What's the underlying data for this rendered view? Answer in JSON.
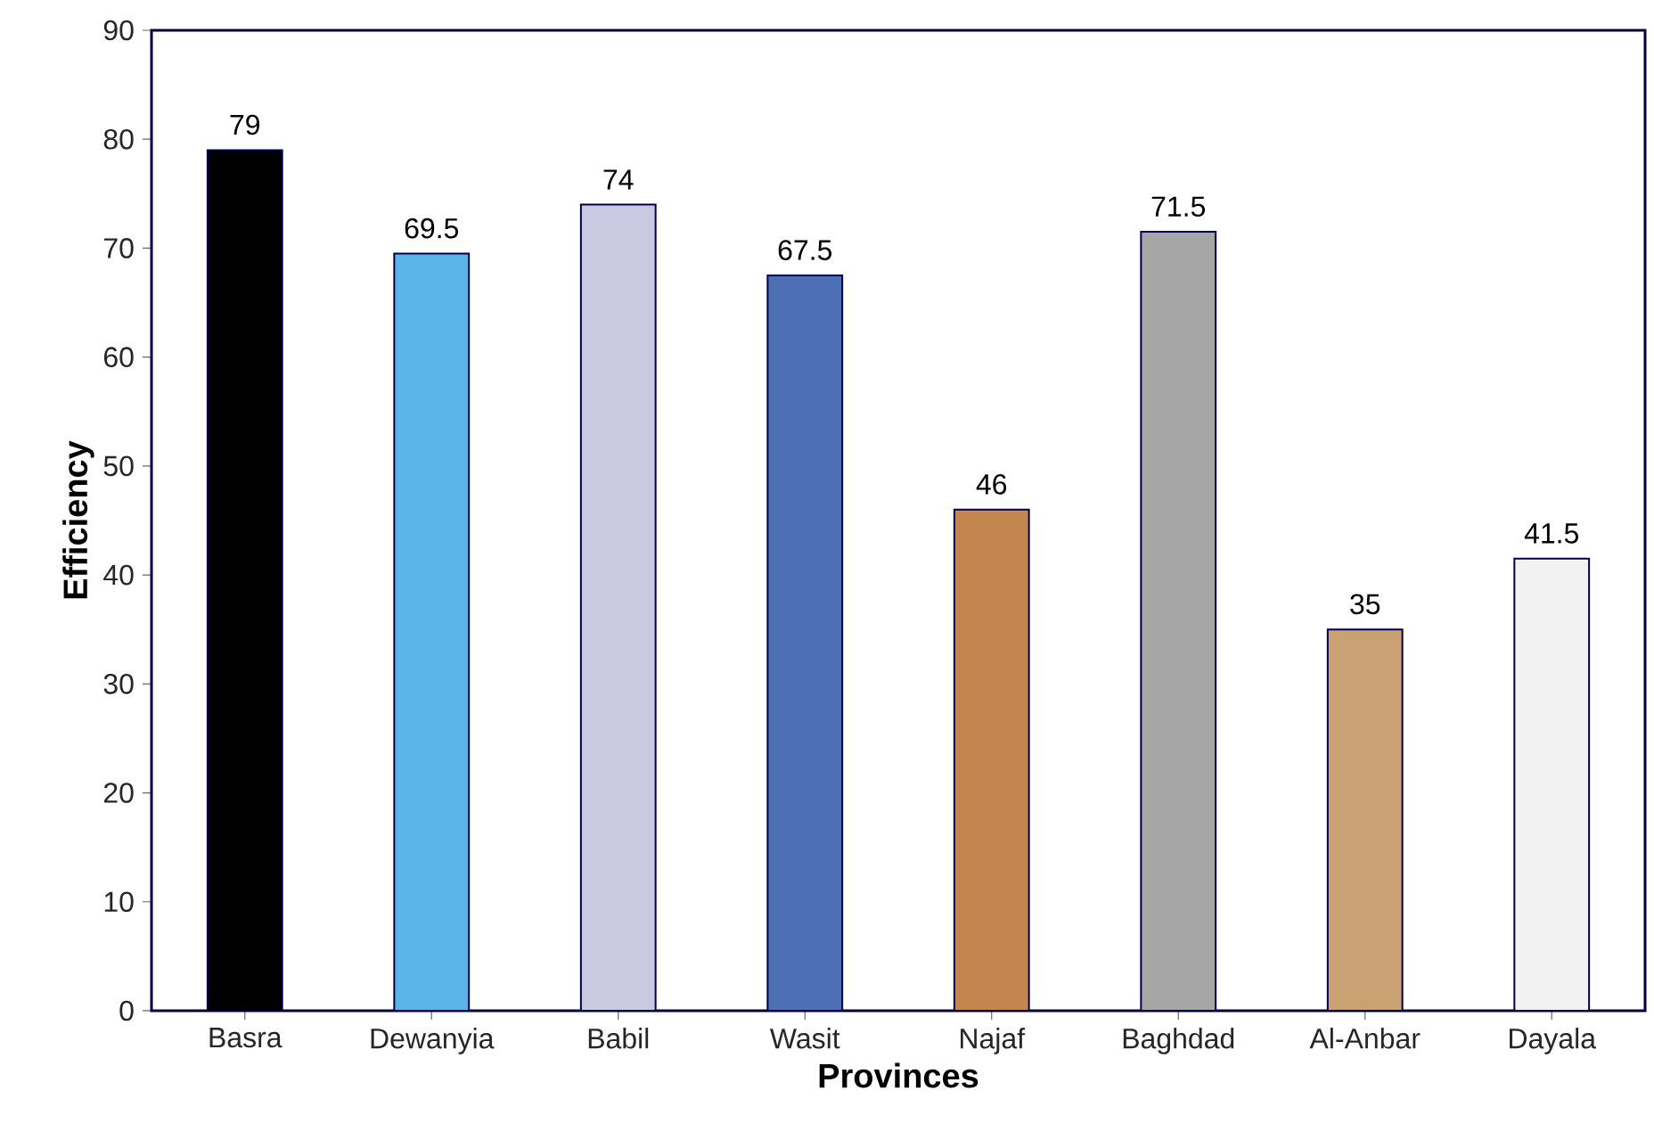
{
  "chart_data": {
    "type": "bar",
    "xlabel": "Provinces",
    "ylabel": "Efficiency",
    "categories": [
      "Basra",
      "Dewanyia",
      "Babil",
      "Wasit",
      "Najaf",
      "Baghdad",
      "Al-Anbar",
      "Dayala"
    ],
    "values": [
      79,
      69.5,
      74,
      67.5,
      46,
      71.5,
      35,
      41.5
    ],
    "colors": [
      "#000000",
      "#5cb4e6",
      "#cbc8e2",
      "#4d6fb3",
      "#c4864f",
      "#a6a6a6",
      "#c9a172",
      "#f2f2f2"
    ],
    "ylim": [
      0,
      90
    ],
    "yticks": [
      0,
      10,
      20,
      30,
      40,
      50,
      60,
      70,
      80,
      90
    ],
    "data_labels": true
  }
}
